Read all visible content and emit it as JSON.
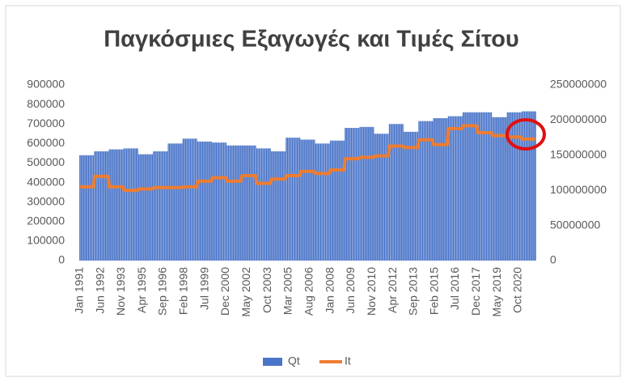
{
  "chart_data": {
    "type": "bar_line",
    "title": "Παγκόσμιες Εξαγωγές και Τιμές Σίτου",
    "categories": [
      "Jan 1991",
      null,
      null,
      null,
      null,
      null,
      null,
      null,
      null,
      null,
      null,
      null,
      null,
      null,
      null,
      null,
      null,
      "Jun 1992",
      null,
      null,
      null,
      null,
      null,
      null,
      null,
      null,
      null,
      null,
      null,
      null,
      null,
      null,
      null,
      null,
      "Nov 1993",
      null,
      null,
      null,
      null,
      null,
      null,
      null,
      null,
      null,
      null,
      null,
      null,
      null,
      null,
      null,
      null,
      "Apr 1995",
      null,
      null,
      null,
      null,
      null,
      null,
      null,
      null,
      null,
      null,
      null,
      null,
      null,
      null,
      null,
      null,
      "Sep 1996",
      null,
      null,
      null,
      null,
      null,
      null,
      null,
      null,
      null,
      null,
      null,
      null,
      null,
      null,
      null,
      null,
      "Feb 1998",
      null,
      null,
      null,
      null,
      null,
      null,
      null,
      null,
      null,
      null,
      null,
      null,
      null,
      null,
      null,
      null,
      "Jul 1999",
      null,
      null,
      null,
      null,
      null,
      null,
      null,
      null,
      null,
      null,
      null,
      null,
      null,
      null,
      null,
      null,
      "Dec 2000",
      null,
      null,
      null,
      null,
      null,
      null,
      null,
      null,
      null,
      null,
      null,
      null,
      null,
      null,
      null,
      null,
      "May 2002",
      null,
      null,
      null,
      null,
      null,
      null,
      null,
      null,
      null,
      null,
      null,
      null,
      null,
      null,
      null,
      null,
      "Oct 2003",
      null,
      null,
      null,
      null,
      null,
      null,
      null,
      null,
      null,
      null,
      null,
      null,
      null,
      null,
      null,
      null,
      "Mar 2005",
      null,
      null,
      null,
      null,
      null,
      null,
      null,
      null,
      null,
      null,
      null,
      null,
      null,
      null,
      null,
      null,
      "Aug 2006",
      null,
      null,
      null,
      null,
      null,
      null,
      null,
      null,
      null,
      null,
      null,
      null,
      null,
      null,
      null,
      null,
      "Jan 2008",
      null,
      null,
      null,
      null,
      null,
      null,
      null,
      null,
      null,
      null,
      null,
      null,
      null,
      null,
      null,
      null,
      "Jun 2009",
      null,
      null,
      null,
      null,
      null,
      null,
      null,
      null,
      null,
      null,
      null,
      null,
      null,
      null,
      null,
      null,
      "Nov 2010",
      null,
      null,
      null,
      null,
      null,
      null,
      null,
      null,
      null,
      null,
      null,
      null,
      null,
      null,
      null,
      null,
      "Apr 2012",
      null,
      null,
      null,
      null,
      null,
      null,
      null,
      null,
      null,
      null,
      null,
      null,
      null,
      null,
      null,
      null,
      "Sep 2013",
      null,
      null,
      null,
      null,
      null,
      null,
      null,
      null,
      null,
      null,
      null,
      null,
      null,
      null,
      null,
      null,
      "Feb 2015",
      null,
      null,
      null,
      null,
      null,
      null,
      null,
      null,
      null,
      null,
      null,
      null,
      null,
      null,
      null,
      null,
      "Jul 2016",
      null,
      null,
      null,
      null,
      null,
      null,
      null,
      null,
      null,
      null,
      null,
      null,
      null,
      null,
      null,
      null,
      "Dec 2017",
      null,
      null,
      null,
      null,
      null,
      null,
      null,
      null,
      null,
      null,
      null,
      null,
      null,
      null,
      null,
      null,
      "May 2019",
      null,
      null,
      null,
      null,
      null,
      null,
      null,
      null,
      null,
      null,
      null,
      null,
      null,
      null,
      null,
      null,
      "Oct 2020",
      null,
      null,
      null,
      null,
      null,
      null,
      null,
      null,
      null,
      null,
      null,
      null,
      null,
      null
    ],
    "series": [
      {
        "name": "Qt",
        "color": "#4a74c8",
        "axis": "y",
        "values": [
          540000,
          540000,
          540000,
          540000,
          540000,
          540000,
          540000,
          540000,
          540000,
          540000,
          540000,
          540000,
          560000,
          560000,
          560000,
          560000,
          560000,
          560000,
          560000,
          560000,
          560000,
          560000,
          560000,
          560000,
          570000,
          570000,
          570000,
          570000,
          570000,
          570000,
          570000,
          570000,
          570000,
          570000,
          570000,
          570000,
          575000,
          575000,
          575000,
          575000,
          575000,
          575000,
          575000,
          575000,
          575000,
          575000,
          575000,
          575000,
          545000,
          545000,
          545000,
          545000,
          545000,
          545000,
          545000,
          545000,
          545000,
          545000,
          545000,
          545000,
          560000,
          560000,
          560000,
          560000,
          560000,
          560000,
          560000,
          560000,
          560000,
          560000,
          560000,
          560000,
          600000,
          600000,
          600000,
          600000,
          600000,
          600000,
          600000,
          600000,
          600000,
          600000,
          600000,
          600000,
          625000,
          625000,
          625000,
          625000,
          625000,
          625000,
          625000,
          625000,
          625000,
          625000,
          625000,
          625000,
          610000,
          610000,
          610000,
          610000,
          610000,
          610000,
          610000,
          610000,
          610000,
          610000,
          610000,
          610000,
          605000,
          605000,
          605000,
          605000,
          605000,
          605000,
          605000,
          605000,
          605000,
          605000,
          605000,
          605000,
          590000,
          590000,
          590000,
          590000,
          590000,
          590000,
          590000,
          590000,
          590000,
          590000,
          590000,
          590000,
          590000,
          590000,
          590000,
          590000,
          590000,
          590000,
          590000,
          590000,
          590000,
          590000,
          590000,
          590000,
          575000,
          575000,
          575000,
          575000,
          575000,
          575000,
          575000,
          575000,
          575000,
          575000,
          575000,
          575000,
          560000,
          560000,
          560000,
          560000,
          560000,
          560000,
          560000,
          560000,
          560000,
          560000,
          560000,
          560000,
          630000,
          630000,
          630000,
          630000,
          630000,
          630000,
          630000,
          630000,
          630000,
          630000,
          630000,
          630000,
          620000,
          620000,
          620000,
          620000,
          620000,
          620000,
          620000,
          620000,
          620000,
          620000,
          620000,
          620000,
          600000,
          600000,
          600000,
          600000,
          600000,
          600000,
          600000,
          600000,
          600000,
          600000,
          600000,
          600000,
          615000,
          615000,
          615000,
          615000,
          615000,
          615000,
          615000,
          615000,
          615000,
          615000,
          615000,
          615000,
          680000,
          680000,
          680000,
          680000,
          680000,
          680000,
          680000,
          680000,
          680000,
          680000,
          680000,
          680000,
          685000,
          685000,
          685000,
          685000,
          685000,
          685000,
          685000,
          685000,
          685000,
          685000,
          685000,
          685000,
          650000,
          650000,
          650000,
          650000,
          650000,
          650000,
          650000,
          650000,
          650000,
          650000,
          650000,
          650000,
          700000,
          700000,
          700000,
          700000,
          700000,
          700000,
          700000,
          700000,
          700000,
          700000,
          700000,
          700000,
          660000,
          660000,
          660000,
          660000,
          660000,
          660000,
          660000,
          660000,
          660000,
          660000,
          660000,
          660000,
          715000,
          715000,
          715000,
          715000,
          715000,
          715000,
          715000,
          715000,
          715000,
          715000,
          715000,
          715000,
          730000,
          730000,
          730000,
          730000,
          730000,
          730000,
          730000,
          730000,
          730000,
          730000,
          730000,
          730000,
          740000,
          740000,
          740000,
          740000,
          740000,
          740000,
          740000,
          740000,
          740000,
          740000,
          740000,
          740000,
          760000,
          760000,
          760000,
          760000,
          760000,
          760000,
          760000,
          760000,
          760000,
          760000,
          760000,
          760000,
          760000,
          760000,
          760000,
          760000,
          760000,
          760000,
          760000,
          760000,
          760000,
          760000,
          760000,
          760000,
          735000,
          735000,
          735000,
          735000,
          735000,
          735000,
          735000,
          735000,
          735000,
          735000,
          735000,
          735000,
          760000,
          760000,
          760000,
          760000,
          760000,
          760000,
          760000,
          760000,
          760000,
          760000,
          760000,
          760000,
          765000,
          765000,
          765000,
          765000,
          765000,
          765000,
          765000,
          765000,
          765000,
          765000,
          765000,
          765000
        ]
      },
      {
        "name": "It",
        "color": "#ed7d31",
        "axis": "y2",
        "values": [
          105000000,
          105000000,
          105000000,
          105000000,
          105000000,
          105000000,
          105000000,
          105000000,
          105000000,
          105000000,
          105000000,
          105000000,
          120000000,
          120000000,
          120000000,
          120000000,
          120000000,
          120000000,
          120000000,
          120000000,
          120000000,
          120000000,
          120000000,
          120000000,
          105000000,
          105000000,
          105000000,
          105000000,
          105000000,
          105000000,
          105000000,
          105000000,
          105000000,
          105000000,
          105000000,
          105000000,
          100000000,
          100000000,
          100000000,
          100000000,
          100000000,
          100000000,
          100000000,
          100000000,
          100000000,
          100000000,
          100000000,
          100000000,
          102000000,
          102000000,
          102000000,
          102000000,
          102000000,
          102000000,
          102000000,
          102000000,
          102000000,
          102000000,
          102000000,
          102000000,
          104000000,
          104000000,
          104000000,
          104000000,
          104000000,
          104000000,
          104000000,
          104000000,
          104000000,
          104000000,
          104000000,
          104000000,
          104000000,
          104000000,
          104000000,
          104000000,
          104000000,
          104000000,
          104000000,
          104000000,
          104000000,
          104000000,
          104000000,
          104000000,
          105000000,
          105000000,
          105000000,
          105000000,
          105000000,
          105000000,
          105000000,
          105000000,
          105000000,
          105000000,
          105000000,
          105000000,
          113000000,
          113000000,
          113000000,
          113000000,
          113000000,
          113000000,
          113000000,
          113000000,
          113000000,
          113000000,
          113000000,
          113000000,
          118000000,
          118000000,
          118000000,
          118000000,
          118000000,
          118000000,
          118000000,
          118000000,
          118000000,
          118000000,
          118000000,
          118000000,
          113000000,
          113000000,
          113000000,
          113000000,
          113000000,
          113000000,
          113000000,
          113000000,
          113000000,
          113000000,
          113000000,
          113000000,
          121000000,
          121000000,
          121000000,
          121000000,
          121000000,
          121000000,
          121000000,
          121000000,
          121000000,
          121000000,
          121000000,
          121000000,
          110000000,
          110000000,
          110000000,
          110000000,
          110000000,
          110000000,
          110000000,
          110000000,
          110000000,
          110000000,
          110000000,
          110000000,
          116000000,
          116000000,
          116000000,
          116000000,
          116000000,
          116000000,
          116000000,
          116000000,
          116000000,
          116000000,
          116000000,
          116000000,
          121000000,
          121000000,
          121000000,
          121000000,
          121000000,
          121000000,
          121000000,
          121000000,
          121000000,
          121000000,
          121000000,
          121000000,
          127000000,
          127000000,
          127000000,
          127000000,
          127000000,
          127000000,
          127000000,
          127000000,
          127000000,
          127000000,
          127000000,
          127000000,
          124000000,
          124000000,
          124000000,
          124000000,
          124000000,
          124000000,
          124000000,
          124000000,
          124000000,
          124000000,
          124000000,
          124000000,
          129000000,
          129000000,
          129000000,
          129000000,
          129000000,
          129000000,
          129000000,
          129000000,
          129000000,
          129000000,
          129000000,
          129000000,
          145000000,
          145000000,
          145000000,
          145000000,
          145000000,
          145000000,
          145000000,
          145000000,
          145000000,
          145000000,
          145000000,
          145000000,
          147000000,
          147000000,
          147000000,
          147000000,
          147000000,
          147000000,
          147000000,
          147000000,
          147000000,
          147000000,
          147000000,
          147000000,
          149000000,
          149000000,
          149000000,
          149000000,
          149000000,
          149000000,
          149000000,
          149000000,
          149000000,
          149000000,
          149000000,
          149000000,
          163000000,
          163000000,
          163000000,
          163000000,
          163000000,
          163000000,
          163000000,
          163000000,
          163000000,
          163000000,
          163000000,
          163000000,
          161000000,
          161000000,
          161000000,
          161000000,
          161000000,
          161000000,
          161000000,
          161000000,
          161000000,
          161000000,
          161000000,
          161000000,
          172000000,
          172000000,
          172000000,
          172000000,
          172000000,
          172000000,
          172000000,
          172000000,
          172000000,
          172000000,
          172000000,
          172000000,
          165000000,
          165000000,
          165000000,
          165000000,
          165000000,
          165000000,
          165000000,
          165000000,
          165000000,
          165000000,
          165000000,
          165000000,
          188000000,
          188000000,
          188000000,
          188000000,
          188000000,
          188000000,
          188000000,
          188000000,
          188000000,
          188000000,
          188000000,
          188000000,
          192000000,
          192000000,
          192000000,
          192000000,
          192000000,
          192000000,
          192000000,
          192000000,
          192000000,
          192000000,
          192000000,
          192000000,
          182000000,
          182000000,
          182000000,
          182000000,
          182000000,
          182000000,
          182000000,
          182000000,
          182000000,
          182000000,
          182000000,
          182000000,
          178000000,
          178000000,
          178000000,
          178000000,
          178000000,
          178000000,
          178000000,
          178000000,
          178000000,
          178000000,
          178000000,
          178000000,
          176000000,
          176000000,
          176000000,
          176000000,
          176000000,
          176000000,
          176000000,
          176000000,
          176000000,
          176000000,
          176000000,
          176000000,
          173000000,
          173000000,
          173000000,
          173000000,
          173000000,
          173000000,
          173000000,
          173000000,
          173000000,
          173000000,
          173000000,
          173000000
        ]
      }
    ],
    "ylim": [
      0,
      900000
    ],
    "yticks": [
      0,
      100000,
      200000,
      300000,
      400000,
      500000,
      600000,
      700000,
      800000,
      900000
    ],
    "y2lim": [
      0,
      250000000
    ],
    "y2ticks": [
      0,
      50000000,
      100000000,
      150000000,
      200000000,
      250000000
    ],
    "grid": false,
    "legend": "bottom"
  }
}
